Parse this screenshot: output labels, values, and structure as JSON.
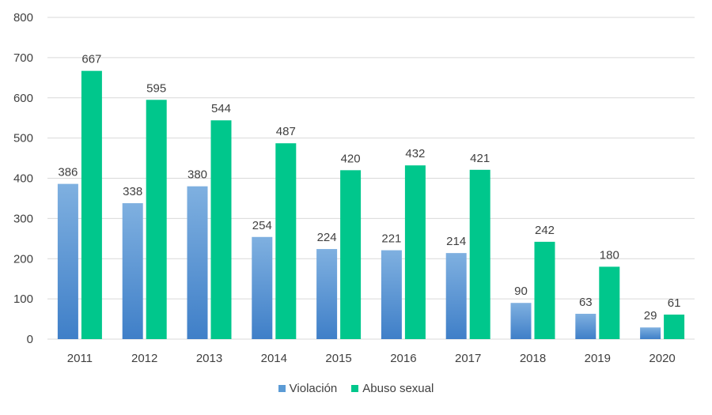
{
  "chart_data": {
    "type": "bar",
    "title": "",
    "xlabel": "",
    "ylabel": "",
    "categories": [
      "2011",
      "2012",
      "2013",
      "2014",
      "2015",
      "2016",
      "2017",
      "2018",
      "2019",
      "2020"
    ],
    "series": [
      {
        "name": "Violación",
        "values": [
          386,
          338,
          380,
          254,
          224,
          221,
          214,
          90,
          63,
          29
        ],
        "color": "#5b9bd5"
      },
      {
        "name": "Abuso sexual",
        "values": [
          667,
          595,
          544,
          487,
          420,
          432,
          421,
          242,
          180,
          61
        ],
        "color": "#00c78c"
      }
    ],
    "ylim": [
      0,
      800
    ],
    "yticks": [
      0,
      100,
      200,
      300,
      400,
      500,
      600,
      700,
      800
    ],
    "grid": true,
    "legend_position": "bottom"
  }
}
